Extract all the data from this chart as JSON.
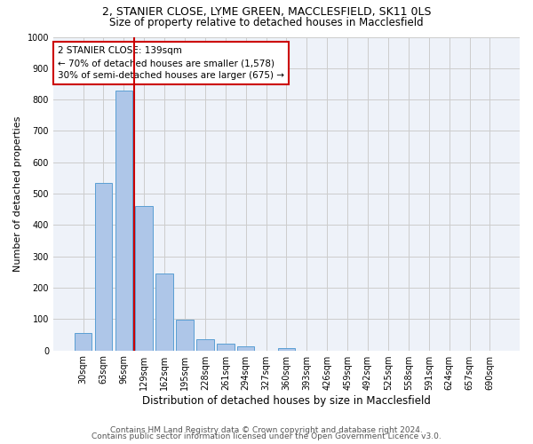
{
  "title1": "2, STANIER CLOSE, LYME GREEN, MACCLESFIELD, SK11 0LS",
  "title2": "Size of property relative to detached houses in Macclesfield",
  "xlabel": "Distribution of detached houses by size in Macclesfield",
  "ylabel": "Number of detached properties",
  "categories": [
    "30sqm",
    "63sqm",
    "96sqm",
    "129sqm",
    "162sqm",
    "195sqm",
    "228sqm",
    "261sqm",
    "294sqm",
    "327sqm",
    "360sqm",
    "393sqm",
    "426sqm",
    "459sqm",
    "492sqm",
    "525sqm",
    "558sqm",
    "591sqm",
    "624sqm",
    "657sqm",
    "690sqm"
  ],
  "values": [
    55,
    535,
    830,
    460,
    245,
    97,
    37,
    21,
    12,
    0,
    8,
    0,
    0,
    0,
    0,
    0,
    0,
    0,
    0,
    0,
    0
  ],
  "bar_color": "#aec6e8",
  "bar_edge_color": "#5a9fd4",
  "vline_color": "#cc0000",
  "annotation_text": "2 STANIER CLOSE: 139sqm\n← 70% of detached houses are smaller (1,578)\n30% of semi-detached houses are larger (675) →",
  "annotation_box_color": "#ffffff",
  "annotation_box_edge": "#cc0000",
  "ylim": [
    0,
    1000
  ],
  "yticks": [
    0,
    100,
    200,
    300,
    400,
    500,
    600,
    700,
    800,
    900,
    1000
  ],
  "grid_color": "#cccccc",
  "background_color": "#eef2f9",
  "footer1": "Contains HM Land Registry data © Crown copyright and database right 2024.",
  "footer2": "Contains public sector information licensed under the Open Government Licence v3.0.",
  "title1_fontsize": 9,
  "title2_fontsize": 8.5,
  "xlabel_fontsize": 8.5,
  "ylabel_fontsize": 8,
  "tick_fontsize": 7,
  "annotation_fontsize": 7.5,
  "footer_fontsize": 6.5
}
